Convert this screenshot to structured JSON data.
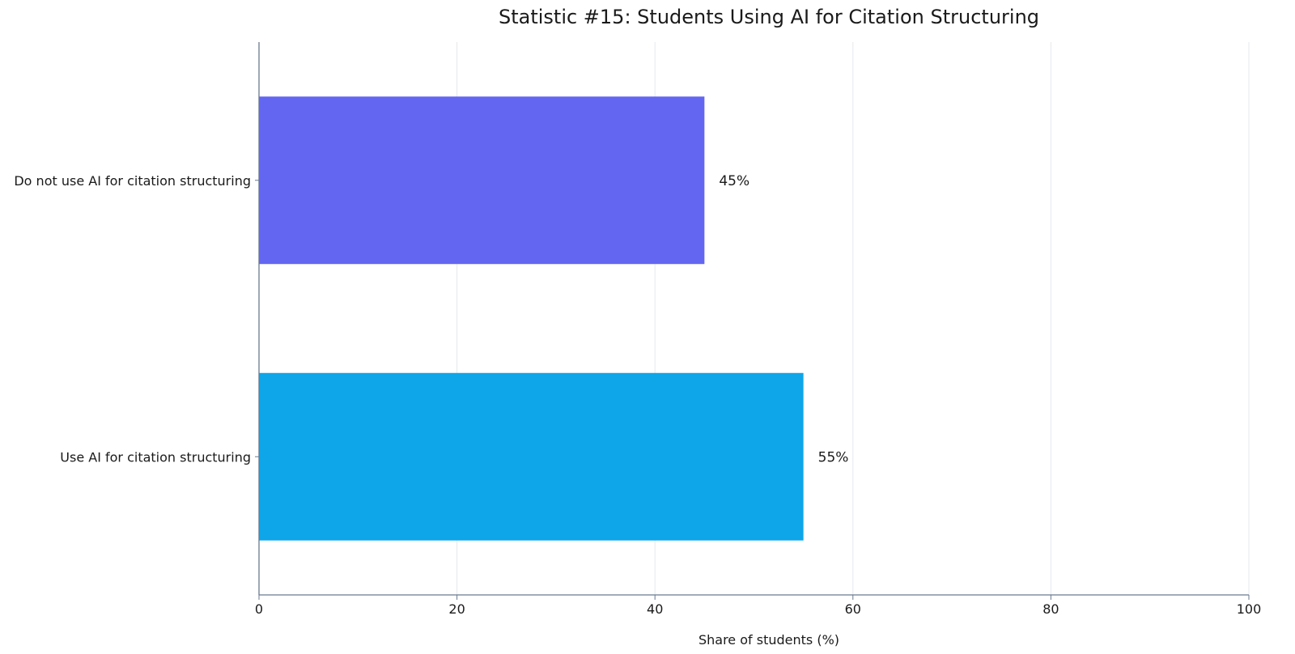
{
  "chart_data": {
    "type": "bar",
    "orientation": "horizontal",
    "title": "Statistic #15: Students Using AI for Citation Structuring",
    "xlabel": "Share of students (%)",
    "ylabel": "",
    "xlim": [
      0,
      100
    ],
    "xticks": [
      0,
      20,
      40,
      60,
      80,
      100
    ],
    "grid": "vertical",
    "legend": "none",
    "categories": [
      "Do not use AI for citation structuring",
      "Use AI for citation structuring"
    ],
    "values": [
      45,
      55
    ],
    "data_labels": [
      "45%",
      "55%"
    ],
    "colors": [
      "#6366f1",
      "#0ea5e9"
    ]
  }
}
